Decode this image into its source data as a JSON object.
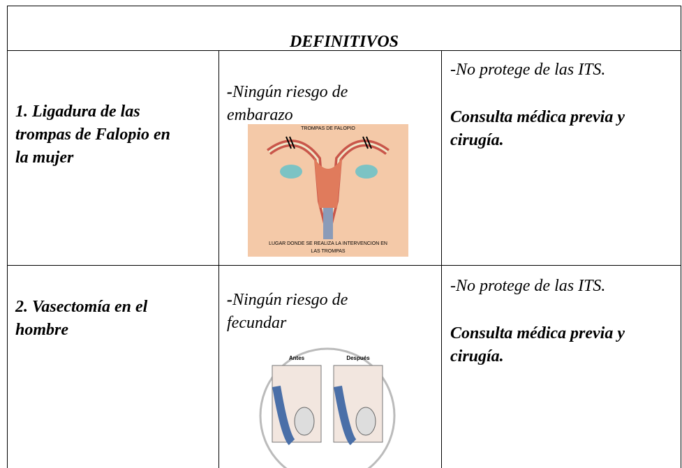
{
  "header": {
    "title": "DEFINITIVOS"
  },
  "rows": [
    {
      "method": "1. Ligadura de las trompas de Falopio en la mujer",
      "benefit_marker": "-",
      "benefit": "Ningún riesgo de embarazo",
      "figure": {
        "top_label": "TROMPAS DE FALOPIO",
        "caption": [
          "LUGAR DONDE SE REALIZA LA INTERVENCION EN",
          "LAS TROMPAS"
        ]
      },
      "note": "-No protege de las ITS.",
      "requirement": "Consulta médica previa y cirugía."
    },
    {
      "method": "2. Vasectomía en el hombre",
      "benefit_marker": "-",
      "benefit": "Ningún riesgo de fecundar",
      "figure": {
        "left_label": "Antes",
        "right_label": "Después"
      },
      "note": "-No protege de las ITS.",
      "requirement": "Consulta médica previa y cirugía."
    }
  ]
}
